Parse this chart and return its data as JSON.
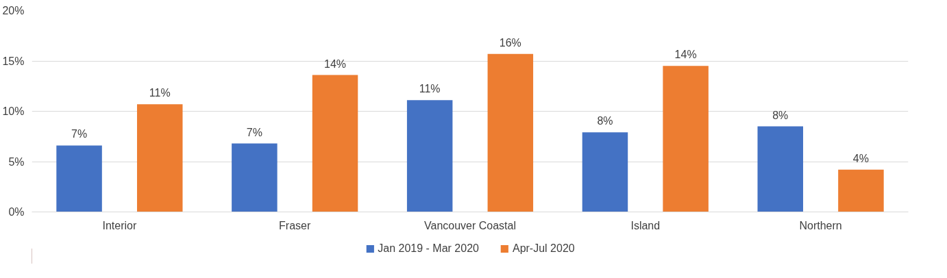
{
  "chart_data": {
    "type": "bar",
    "categories": [
      "Interior",
      "Fraser",
      "Vancouver Coastal",
      "Island",
      "Northern"
    ],
    "series": [
      {
        "name": "Jan 2019 - Mar 2020",
        "color": "#4472c4",
        "values": [
          6.6,
          6.8,
          11.1,
          7.9,
          8.5
        ],
        "value_labels": [
          "7%",
          "7%",
          "11%",
          "8%",
          "8%"
        ]
      },
      {
        "name": "Apr-Jul 2020",
        "color": "#ed7d31",
        "values": [
          10.7,
          13.6,
          15.7,
          14.5,
          4.2
        ],
        "value_labels": [
          "11%",
          "14%",
          "16%",
          "14%",
          "4%"
        ]
      }
    ],
    "ylim": [
      0,
      20
    ],
    "yticks": [
      {
        "value": 0,
        "label": "0%"
      },
      {
        "value": 5,
        "label": "5%"
      },
      {
        "value": 10,
        "label": "10%"
      },
      {
        "value": 15,
        "label": "15%"
      },
      {
        "value": 20,
        "label": "20%"
      }
    ],
    "grid": "y",
    "legend": "bottom"
  }
}
